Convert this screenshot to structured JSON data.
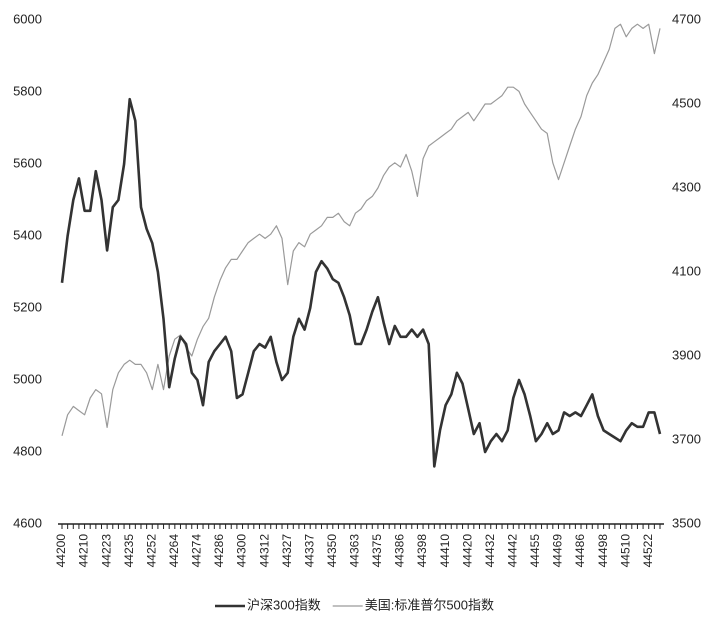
{
  "chart_data": {
    "type": "line",
    "categories": [
      44200,
      null,
      null,
      null,
      44210,
      null,
      null,
      null,
      44223,
      null,
      null,
      null,
      44235,
      null,
      null,
      null,
      44252,
      null,
      null,
      null,
      44264,
      null,
      null,
      null,
      44274,
      null,
      null,
      null,
      44286,
      null,
      null,
      null,
      44300,
      null,
      null,
      null,
      44312,
      null,
      null,
      null,
      44327,
      null,
      null,
      null,
      44337,
      null,
      null,
      null,
      44350,
      null,
      null,
      null,
      44363,
      null,
      null,
      null,
      44375,
      null,
      null,
      null,
      44386,
      null,
      null,
      null,
      44398,
      null,
      null,
      null,
      44410,
      null,
      null,
      null,
      44420,
      null,
      null,
      null,
      44432,
      null,
      null,
      null,
      44442,
      null,
      null,
      null,
      44455,
      null,
      null,
      null,
      44469,
      null,
      null,
      null,
      44486,
      null,
      null,
      null,
      44498,
      null,
      null,
      null,
      44510,
      null,
      null,
      null,
      44522,
      null,
      null
    ],
    "series": [
      {
        "name": "沪深300指数",
        "color": "#333333",
        "values": [
          5270,
          5400,
          5500,
          5560,
          5470,
          5470,
          5580,
          5500,
          5360,
          5480,
          5500,
          5600,
          5780,
          5720,
          5480,
          5420,
          5380,
          5300,
          5170,
          4980,
          5060,
          5120,
          5100,
          5020,
          5000,
          4930,
          5050,
          5080,
          5100,
          5120,
          5080,
          4950,
          4960,
          5020,
          5080,
          5100,
          5090,
          5120,
          5050,
          5000,
          5020,
          5120,
          5170,
          5140,
          5200,
          5300,
          5330,
          5310,
          5280,
          5270,
          5230,
          5180,
          5100,
          5100,
          5140,
          5190,
          5230,
          5160,
          5100,
          5150,
          5120,
          5120,
          5140,
          5120,
          5140,
          5100,
          4760,
          4860,
          4930,
          4960,
          5020,
          4990,
          4920,
          4850,
          4880,
          4800,
          4830,
          4850,
          4830,
          4860,
          4950,
          5000,
          4960,
          4900,
          4830,
          4850,
          4880,
          4850,
          4860,
          4910,
          4900,
          4910,
          4900,
          4930,
          4960,
          4900,
          4860,
          4850,
          4840,
          4830,
          4860,
          4880,
          4870,
          4870,
          4910,
          4910,
          4850
        ]
      },
      {
        "name": "美国:标准普尔500指数",
        "color": "#9a9a9a",
        "axis": "y2",
        "values": [
          3710,
          3760,
          3780,
          3770,
          3760,
          3800,
          3820,
          3810,
          3730,
          3820,
          3860,
          3880,
          3890,
          3880,
          3880,
          3860,
          3820,
          3880,
          3820,
          3900,
          3940,
          3950,
          3920,
          3900,
          3940,
          3970,
          3990,
          4040,
          4080,
          4110,
          4130,
          4130,
          4150,
          4170,
          4180,
          4190,
          4180,
          4190,
          4210,
          4180,
          4070,
          4150,
          4170,
          4160,
          4190,
          4200,
          4210,
          4230,
          4230,
          4240,
          4220,
          4210,
          4240,
          4250,
          4270,
          4280,
          4300,
          4330,
          4350,
          4360,
          4350,
          4380,
          4340,
          4280,
          4370,
          4400,
          4410,
          4420,
          4430,
          4440,
          4460,
          4470,
          4480,
          4460,
          4480,
          4500,
          4500,
          4510,
          4520,
          4540,
          4540,
          4530,
          4500,
          4480,
          4460,
          4440,
          4430,
          4360,
          4320,
          4360,
          4400,
          4440,
          4470,
          4520,
          4550,
          4570,
          4600,
          4630,
          4680,
          4690,
          4660,
          4680,
          4690,
          4680,
          4690,
          4620,
          4680
        ]
      }
    ],
    "ylim": [
      4600,
      6000
    ],
    "yticks": [
      4600,
      4800,
      5000,
      5200,
      5400,
      5600,
      5800,
      6000
    ],
    "y2lim": [
      3500,
      4700
    ],
    "y2ticks": [
      3500,
      3700,
      3900,
      4100,
      4300,
      4500,
      4700
    ],
    "grid": false,
    "legend": "bottom"
  }
}
